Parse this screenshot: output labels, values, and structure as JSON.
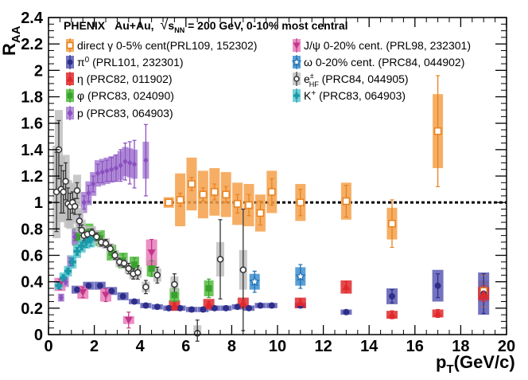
{
  "chart_data": {
    "type": "scatter",
    "title": {
      "experiment": "PHENIX",
      "system": "Au+Au,",
      "sqrt_symbol": "√",
      "energy_var": "s",
      "energy_sub": "NN",
      "energy_rest": " = 200 GeV, 0-10% most central"
    },
    "xlabel": {
      "main": "p",
      "sub": "T",
      "rest": "(GeV/c)"
    },
    "ylabel": {
      "main": "R",
      "sub": "AA"
    },
    "xlim": [
      0,
      20
    ],
    "ylim": [
      0,
      2.4
    ],
    "x_ticks": [
      "0",
      "2",
      "4",
      "6",
      "8",
      "10",
      "12",
      "14",
      "16",
      "18",
      "20"
    ],
    "y_ticks": [
      "0",
      "0.2",
      "0.4",
      "0.6",
      "0.8",
      "1",
      "1.2",
      "1.4",
      "1.6",
      "1.8",
      "2",
      "2.2",
      "2.4"
    ],
    "reference_line": 1.0,
    "series": [
      {
        "name": "direct_gamma",
        "label": "direct γ 0-5% cent(PRL109, 152302)",
        "label_parts": [
          "direct γ 0-5% cent(PRL109, 152302)"
        ],
        "marker": "open-square",
        "color": "#e8821e",
        "box_color": "#f5a04a",
        "points": [
          {
            "x": 5.25,
            "y": 1.0,
            "err": 0.02,
            "syst": 0.04
          },
          {
            "x": 5.75,
            "y": 1.02,
            "err": 0.05,
            "syst": 0.2
          },
          {
            "x": 6.25,
            "y": 1.14,
            "err": 0.05,
            "syst": 0.2
          },
          {
            "x": 6.75,
            "y": 1.06,
            "err": 0.05,
            "syst": 0.18
          },
          {
            "x": 7.25,
            "y": 1.08,
            "err": 0.06,
            "syst": 0.18
          },
          {
            "x": 7.75,
            "y": 1.06,
            "err": 0.06,
            "syst": 0.17
          },
          {
            "x": 8.25,
            "y": 0.99,
            "err": 0.07,
            "syst": 0.16
          },
          {
            "x": 8.75,
            "y": 0.98,
            "err": 0.08,
            "syst": 0.16
          },
          {
            "x": 9.25,
            "y": 0.92,
            "err": 0.09,
            "syst": 0.14
          },
          {
            "x": 9.75,
            "y": 1.08,
            "err": 0.1,
            "syst": 0.16
          },
          {
            "x": 11.0,
            "y": 1.0,
            "err": 0.1,
            "syst": 0.14
          },
          {
            "x": 13.0,
            "y": 1.01,
            "err": 0.12,
            "syst": 0.14
          },
          {
            "x": 15.0,
            "y": 0.84,
            "err": 0.18,
            "syst": 0.12
          },
          {
            "x": 17.0,
            "y": 1.54,
            "err": 0.42,
            "syst": 0.28
          },
          {
            "x": 19.0,
            "y": 0.33,
            "err": 0.12,
            "syst": 0.08
          }
        ]
      },
      {
        "name": "pi0",
        "label": "π⁰ (PRL101, 232301)",
        "label_parts": [
          "π",
          "0",
          " (PRL101, 232301)"
        ],
        "marker": "filled-circle",
        "color": "#2e2e8a",
        "box_color": "#5a5ab4",
        "points": [
          {
            "x": 1.25,
            "y": 0.34,
            "err": 0.01,
            "syst": 0.03
          },
          {
            "x": 1.75,
            "y": 0.37,
            "err": 0.01,
            "syst": 0.03
          },
          {
            "x": 2.25,
            "y": 0.37,
            "err": 0.01,
            "syst": 0.03
          },
          {
            "x": 2.75,
            "y": 0.33,
            "err": 0.01,
            "syst": 0.03
          },
          {
            "x": 3.25,
            "y": 0.29,
            "err": 0.01,
            "syst": 0.03
          },
          {
            "x": 3.75,
            "y": 0.25,
            "err": 0.01,
            "syst": 0.02
          },
          {
            "x": 4.25,
            "y": 0.22,
            "err": 0.01,
            "syst": 0.02
          },
          {
            "x": 4.75,
            "y": 0.21,
            "err": 0.01,
            "syst": 0.02
          },
          {
            "x": 5.25,
            "y": 0.2,
            "err": 0.01,
            "syst": 0.02
          },
          {
            "x": 5.75,
            "y": 0.2,
            "err": 0.01,
            "syst": 0.02
          },
          {
            "x": 6.25,
            "y": 0.19,
            "err": 0.01,
            "syst": 0.02
          },
          {
            "x": 6.75,
            "y": 0.19,
            "err": 0.01,
            "syst": 0.02
          },
          {
            "x": 7.25,
            "y": 0.2,
            "err": 0.01,
            "syst": 0.02
          },
          {
            "x": 7.75,
            "y": 0.2,
            "err": 0.01,
            "syst": 0.02
          },
          {
            "x": 8.25,
            "y": 0.21,
            "err": 0.01,
            "syst": 0.02
          },
          {
            "x": 8.75,
            "y": 0.2,
            "err": 0.01,
            "syst": 0.02
          },
          {
            "x": 9.25,
            "y": 0.22,
            "err": 0.01,
            "syst": 0.02
          },
          {
            "x": 9.75,
            "y": 0.22,
            "err": 0.01,
            "syst": 0.02
          },
          {
            "x": 11.0,
            "y": 0.22,
            "err": 0.01,
            "syst": 0.02
          },
          {
            "x": 13.0,
            "y": 0.17,
            "err": 0.01,
            "syst": 0.02
          },
          {
            "x": 15.0,
            "y": 0.29,
            "err": 0.05,
            "syst": 0.06
          },
          {
            "x": 17.0,
            "y": 0.37,
            "err": 0.09,
            "syst": 0.12
          },
          {
            "x": 19.0,
            "y": 0.31,
            "err": 0.15,
            "syst": 0.16
          }
        ]
      },
      {
        "name": "eta",
        "label": "η (PRC82, 011902)",
        "label_parts": [
          "η (PRC82, 011902)"
        ],
        "marker": "filled-triangle",
        "color": "#e0282c",
        "box_color": "#e0282c",
        "points": [
          {
            "x": 5.5,
            "y": 0.22,
            "err": 0.02,
            "syst": 0.04
          },
          {
            "x": 7.0,
            "y": 0.23,
            "err": 0.02,
            "syst": 0.04
          },
          {
            "x": 8.5,
            "y": 0.24,
            "err": 0.02,
            "syst": 0.04
          },
          {
            "x": 11.0,
            "y": 0.24,
            "err": 0.03,
            "syst": 0.04
          },
          {
            "x": 13.0,
            "y": 0.36,
            "err": 0.04,
            "syst": 0.05
          },
          {
            "x": 15.0,
            "y": 0.15,
            "err": 0.03,
            "syst": 0.03
          },
          {
            "x": 17.0,
            "y": 0.16,
            "err": 0.03,
            "syst": 0.03
          },
          {
            "x": 19.0,
            "y": 0.31,
            "err": 0.06,
            "syst": 0.05
          }
        ]
      },
      {
        "name": "phi",
        "label": "φ (PRC83, 024090)",
        "label_parts": [
          "φ (PRC83, 024090)"
        ],
        "marker": "filled-square",
        "color": "#3aa12e",
        "box_color": "#52bc3e",
        "points": [
          {
            "x": 1.25,
            "y": 0.74,
            "err": 0.03,
            "syst": 0.07
          },
          {
            "x": 1.75,
            "y": 0.77,
            "err": 0.03,
            "syst": 0.07
          },
          {
            "x": 2.25,
            "y": 0.73,
            "err": 0.04,
            "syst": 0.06
          },
          {
            "x": 2.75,
            "y": 0.62,
            "err": 0.04,
            "syst": 0.06
          },
          {
            "x": 3.25,
            "y": 0.56,
            "err": 0.05,
            "syst": 0.06
          },
          {
            "x": 3.75,
            "y": 0.53,
            "err": 0.05,
            "syst": 0.06
          },
          {
            "x": 4.5,
            "y": 0.5,
            "err": 0.06,
            "syst": 0.06
          },
          {
            "x": 5.5,
            "y": 0.3,
            "err": 0.05,
            "syst": 0.05
          },
          {
            "x": 7.0,
            "y": 0.35,
            "err": 0.07,
            "syst": 0.06
          }
        ]
      },
      {
        "name": "proton",
        "label": "p (PRC83, 064903)",
        "label_parts": [
          "p (PRC83, 064903)"
        ],
        "marker": "filled-diamond",
        "color": "#8a4fbe",
        "box_color": "#a77fd2",
        "points": [
          {
            "x": 0.55,
            "y": 0.28,
            "err": 0.02,
            "syst": 0.03
          },
          {
            "x": 0.75,
            "y": 0.4,
            "err": 0.02,
            "syst": 0.04
          },
          {
            "x": 0.95,
            "y": 0.55,
            "err": 0.03,
            "syst": 0.05
          },
          {
            "x": 1.15,
            "y": 0.74,
            "err": 0.03,
            "syst": 0.06
          },
          {
            "x": 1.35,
            "y": 0.87,
            "err": 0.04,
            "syst": 0.07
          },
          {
            "x": 1.55,
            "y": 1.0,
            "err": 0.05,
            "syst": 0.08
          },
          {
            "x": 1.75,
            "y": 1.07,
            "err": 0.06,
            "syst": 0.09
          },
          {
            "x": 1.95,
            "y": 1.14,
            "err": 0.06,
            "syst": 0.09
          },
          {
            "x": 2.15,
            "y": 1.22,
            "err": 0.07,
            "syst": 0.1
          },
          {
            "x": 2.35,
            "y": 1.23,
            "err": 0.08,
            "syst": 0.1
          },
          {
            "x": 2.55,
            "y": 1.24,
            "err": 0.08,
            "syst": 0.1
          },
          {
            "x": 2.75,
            "y": 1.25,
            "err": 0.09,
            "syst": 0.1
          },
          {
            "x": 2.95,
            "y": 1.26,
            "err": 0.1,
            "syst": 0.1
          },
          {
            "x": 3.15,
            "y": 1.28,
            "err": 0.12,
            "syst": 0.11
          },
          {
            "x": 3.35,
            "y": 1.31,
            "err": 0.14,
            "syst": 0.11
          },
          {
            "x": 3.55,
            "y": 1.3,
            "err": 0.16,
            "syst": 0.11
          },
          {
            "x": 3.75,
            "y": 1.29,
            "err": 0.18,
            "syst": 0.11
          },
          {
            "x": 4.25,
            "y": 1.32,
            "err": 0.27,
            "syst": 0.14
          }
        ]
      },
      {
        "name": "jpsi",
        "label": "J/ψ 0-20% cent. (PRL98, 232301)",
        "label_parts": [
          "J/ψ 0-20% cent. (PRL98, 232301)"
        ],
        "marker": "filled-inverted-triangle",
        "color": "#c2358a",
        "box_color": "#e67cb9",
        "points": [
          {
            "x": 0.5,
            "y": 0.38,
            "err": 0.04,
            "syst": 0.05
          },
          {
            "x": 1.5,
            "y": 0.32,
            "err": 0.04,
            "syst": 0.05
          },
          {
            "x": 2.5,
            "y": 0.3,
            "err": 0.05,
            "syst": 0.05
          },
          {
            "x": 3.5,
            "y": 0.11,
            "err": 0.06,
            "syst": 0.03
          },
          {
            "x": 4.5,
            "y": 0.62,
            "err": 0.1,
            "syst": 0.1
          }
        ]
      },
      {
        "name": "omega",
        "label": "ω 0-20% cent. (PRC84, 044902)",
        "label_parts": [
          "ω 0-20% cent. (PRC84, 044902)"
        ],
        "marker": "open-star",
        "color": "#1f6fb2",
        "box_color": "#3d8fd0",
        "points": [
          {
            "x": 9.0,
            "y": 0.4,
            "err": 0.08,
            "syst": 0.06
          },
          {
            "x": 11.0,
            "y": 0.44,
            "err": 0.09,
            "syst": 0.07
          }
        ]
      },
      {
        "name": "e_hf",
        "label": "e± HF (PRC84, 044905)",
        "label_parts": [
          "e",
          "±",
          "HF",
          " (PRC84, 044905)"
        ],
        "marker": "open-circle",
        "color": "#333333",
        "box_color": "#bfbfbf",
        "points": [
          {
            "x": 0.35,
            "y": 1.08,
            "err": 0.3,
            "syst": 0.35
          },
          {
            "x": 0.45,
            "y": 1.4,
            "err": 0.22,
            "syst": 0.3
          },
          {
            "x": 0.55,
            "y": 1.1,
            "err": 0.18,
            "syst": 0.25
          },
          {
            "x": 0.65,
            "y": 1.08,
            "err": 0.16,
            "syst": 0.22
          },
          {
            "x": 0.75,
            "y": 1.16,
            "err": 0.14,
            "syst": 0.2
          },
          {
            "x": 0.85,
            "y": 0.99,
            "err": 0.12,
            "syst": 0.18
          },
          {
            "x": 0.95,
            "y": 0.97,
            "err": 0.1,
            "syst": 0.17
          },
          {
            "x": 1.05,
            "y": 1.0,
            "err": 0.08,
            "syst": 0.15
          },
          {
            "x": 1.15,
            "y": 0.97,
            "err": 0.06,
            "syst": 0.13
          },
          {
            "x": 1.25,
            "y": 1.09,
            "err": 0.06,
            "syst": 0.12
          },
          {
            "x": 1.35,
            "y": 0.86,
            "err": 0.05,
            "syst": 0.1
          },
          {
            "x": 1.45,
            "y": 0.79,
            "err": 0.04,
            "syst": 0.08
          },
          {
            "x": 1.55,
            "y": 0.75,
            "err": 0.04,
            "syst": 0.07
          },
          {
            "x": 1.7,
            "y": 0.76,
            "err": 0.03,
            "syst": 0.06
          },
          {
            "x": 1.9,
            "y": 0.77,
            "err": 0.03,
            "syst": 0.05
          },
          {
            "x": 2.1,
            "y": 0.74,
            "err": 0.03,
            "syst": 0.05
          },
          {
            "x": 2.3,
            "y": 0.7,
            "err": 0.03,
            "syst": 0.04
          },
          {
            "x": 2.5,
            "y": 0.69,
            "err": 0.03,
            "syst": 0.04
          },
          {
            "x": 2.7,
            "y": 0.65,
            "err": 0.03,
            "syst": 0.04
          },
          {
            "x": 2.9,
            "y": 0.6,
            "err": 0.03,
            "syst": 0.04
          },
          {
            "x": 3.1,
            "y": 0.55,
            "err": 0.03,
            "syst": 0.04
          },
          {
            "x": 3.3,
            "y": 0.54,
            "err": 0.03,
            "syst": 0.04
          },
          {
            "x": 3.5,
            "y": 0.5,
            "err": 0.04,
            "syst": 0.04
          },
          {
            "x": 3.7,
            "y": 0.46,
            "err": 0.04,
            "syst": 0.04
          },
          {
            "x": 3.9,
            "y": 0.47,
            "err": 0.05,
            "syst": 0.04
          },
          {
            "x": 4.25,
            "y": 0.36,
            "err": 0.05,
            "syst": 0.04
          },
          {
            "x": 4.75,
            "y": 0.45,
            "err": 0.06,
            "syst": 0.05
          },
          {
            "x": 5.5,
            "y": 0.38,
            "err": 0.08,
            "syst": 0.06
          },
          {
            "x": 6.5,
            "y": 0.01,
            "err": 0.1,
            "syst": 0.06
          },
          {
            "x": 7.5,
            "y": 0.57,
            "err": 0.3,
            "syst": 0.13
          },
          {
            "x": 8.5,
            "y": 0.49,
            "err": 0.46,
            "syst": 0.15
          }
        ]
      },
      {
        "name": "kaon_plus",
        "label": "K+ (PRC83, 064903)",
        "label_parts": [
          "K",
          "+",
          " (PRC83, 064903)"
        ],
        "marker": "filled-cross",
        "color": "#1a9aa7",
        "box_color": "#5fc8d2",
        "points": [
          {
            "x": 0.45,
            "y": 0.37,
            "err": 0.02,
            "syst": 0.03
          },
          {
            "x": 0.65,
            "y": 0.43,
            "err": 0.02,
            "syst": 0.04
          },
          {
            "x": 0.85,
            "y": 0.48,
            "err": 0.02,
            "syst": 0.04
          },
          {
            "x": 1.05,
            "y": 0.55,
            "err": 0.03,
            "syst": 0.05
          },
          {
            "x": 1.25,
            "y": 0.63,
            "err": 0.03,
            "syst": 0.05
          },
          {
            "x": 1.45,
            "y": 0.67,
            "err": 0.03,
            "syst": 0.05
          },
          {
            "x": 1.65,
            "y": 0.7,
            "err": 0.04,
            "syst": 0.05
          },
          {
            "x": 1.85,
            "y": 0.72,
            "err": 0.05,
            "syst": 0.06
          }
        ]
      }
    ]
  }
}
